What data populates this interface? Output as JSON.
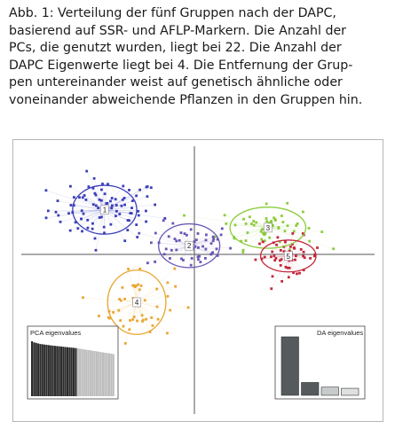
{
  "caption": {
    "lines": [
      "Abb. 1: Verteilung der fünf Gruppen nach der DAPC,",
      "basierend auf SSR- und AFLP-Markern. Die Anzahl der",
      "PCs, die genutzt wurden, liegt bei 22. Die Anzahl der",
      "DAPC Eigenwerte liegt bei 4. Die Entfernung der Grup-",
      "pen untereinander weist auf genetisch ähnliche oder",
      "voneinander abweichende Pflanzen in den Gruppen hin."
    ]
  },
  "chart_data": [
    {
      "type": "scatter",
      "title": "",
      "xlabel": "",
      "ylabel": "",
      "xlim": [
        -6,
        6
      ],
      "ylim": [
        -6,
        4
      ],
      "axes": "crossing-at-origin",
      "grid": false,
      "legend": "none",
      "groups": [
        {
          "label": "1",
          "color": "#3a3fb8",
          "center": [
            -3.2,
            1.6
          ],
          "spread": [
            1.3,
            0.8
          ],
          "ellipse_radius": [
            1.1,
            0.95
          ],
          "points": 90
        },
        {
          "label": "2",
          "color": "#6a55b5",
          "center": [
            -0.3,
            0.2
          ],
          "spread": [
            1.0,
            0.6
          ],
          "ellipse_radius": [
            1.05,
            0.85
          ],
          "points": 55
        },
        {
          "label": "3",
          "color": "#8ccc3c",
          "center": [
            2.4,
            0.9
          ],
          "spread": [
            1.1,
            0.55
          ],
          "ellipse_radius": [
            1.3,
            0.8
          ],
          "points": 60
        },
        {
          "label": "4",
          "color": "#e8a631",
          "center": [
            -2.1,
            -2.0
          ],
          "spread": [
            0.85,
            1.0
          ],
          "ellipse_radius": [
            1.0,
            1.25
          ],
          "points": 50
        },
        {
          "label": "5",
          "color": "#c4273c",
          "center": [
            3.1,
            -0.2
          ],
          "spread": [
            0.75,
            0.5
          ],
          "ellipse_radius": [
            0.95,
            0.62
          ],
          "points": 55
        }
      ]
    },
    {
      "type": "bar",
      "title": "PCA eigenvalues",
      "position": "bottom-left",
      "values": [
        100,
        98,
        97,
        96,
        95,
        94.5,
        94,
        93.5,
        93,
        92.5,
        92,
        91.6,
        91.2,
        90.8,
        90.4,
        90,
        89.6,
        89.2,
        88.8,
        88.4,
        88,
        87.6,
        87,
        86.4,
        85.8,
        85.2,
        84.6,
        84,
        83.4,
        82.8,
        82.2,
        81.6,
        81,
        80.4,
        79.8,
        79.2,
        78.6,
        78,
        77.4,
        76.8
      ],
      "highlighted_count": 22,
      "highlight_color": "#2b2b2b",
      "base_color": "#bdbdbd"
    },
    {
      "type": "bar",
      "title": "DA eigenvalues",
      "position": "bottom-right",
      "values": [
        100,
        22,
        14,
        12
      ],
      "colors": [
        "#555a5c",
        "#555a5c",
        "#c8cbcc",
        "#dfe1e1"
      ]
    }
  ]
}
